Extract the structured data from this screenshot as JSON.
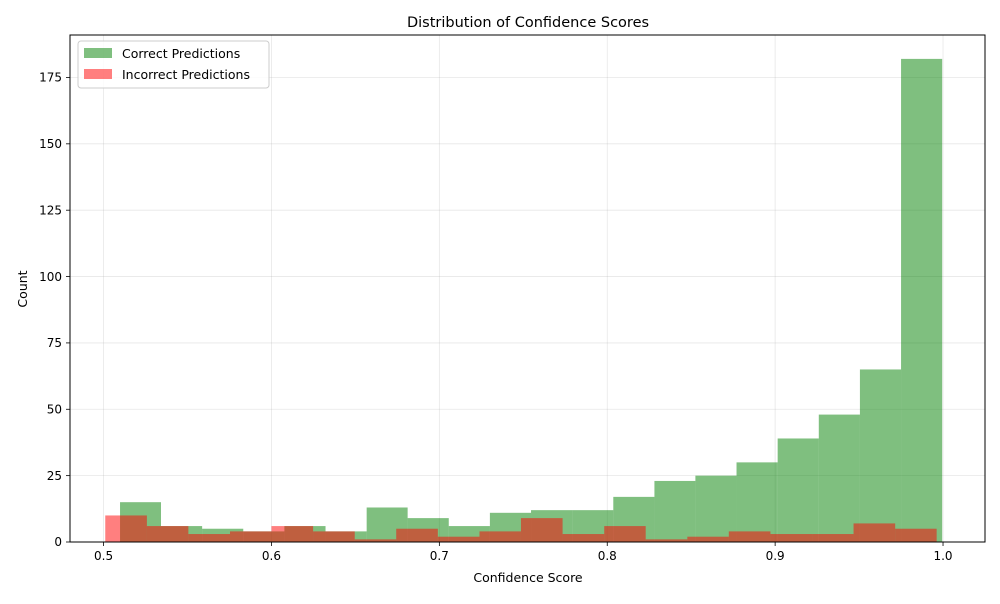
{
  "chart_data": {
    "type": "bar",
    "title": "Distribution of Confidence Scores",
    "xlabel": "Confidence Score",
    "ylabel": "Count",
    "xlim": [
      0.48,
      1.025
    ],
    "ylim": [
      0,
      191
    ],
    "x_ticks": [
      0.5,
      0.6,
      0.7,
      0.8,
      0.9,
      1.0
    ],
    "x_tick_labels": [
      "0.5",
      "0.6",
      "0.7",
      "0.8",
      "0.9",
      "1.0"
    ],
    "y_ticks": [
      0,
      25,
      50,
      75,
      100,
      125,
      150,
      175
    ],
    "y_tick_labels": [
      "0",
      "25",
      "50",
      "75",
      "100",
      "125",
      "150",
      "175"
    ],
    "grid": true,
    "legend_position": "top-left",
    "series": [
      {
        "name": "Correct Predictions",
        "color": "#008000",
        "opacity": 0.5,
        "bin_edges": [
          0.5098,
          0.5342,
          0.5587,
          0.5832,
          0.6077,
          0.6322,
          0.6567,
          0.6811,
          0.7056,
          0.7301,
          0.7546,
          0.7791,
          0.8036,
          0.8281,
          0.8525,
          0.877,
          0.9015,
          0.926,
          0.9505,
          0.975,
          0.9995
        ],
        "values": [
          15,
          6,
          5,
          4,
          6,
          4,
          13,
          9,
          6,
          11,
          12,
          12,
          17,
          23,
          25,
          30,
          39,
          48,
          65,
          182
        ]
      },
      {
        "name": "Incorrect Predictions",
        "color": "#ff0000",
        "opacity": 0.5,
        "bin_edges": [
          0.501,
          0.5258,
          0.5505,
          0.5753,
          0.6,
          0.6248,
          0.6496,
          0.6743,
          0.6991,
          0.7239,
          0.7486,
          0.7734,
          0.7982,
          0.8229,
          0.8477,
          0.8724,
          0.8972,
          0.922,
          0.9467,
          0.9715,
          0.9962
        ],
        "values": [
          10,
          6,
          3,
          4,
          6,
          4,
          1,
          5,
          2,
          4,
          9,
          3,
          6,
          1,
          2,
          4,
          3,
          3,
          7,
          5
        ]
      }
    ]
  }
}
